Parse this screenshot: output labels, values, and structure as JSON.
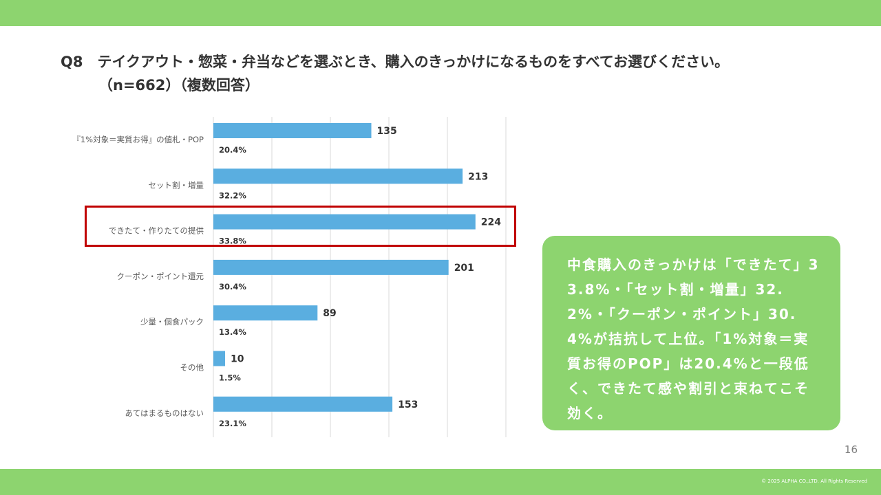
{
  "colors": {
    "band": "#8dd46f",
    "bar": "#5aaee0",
    "highlight": "#c00000",
    "summary_bg": "#8dd46f",
    "grid": "#d9d9d9"
  },
  "title": {
    "line1": "Q8　テイクアウト・惣菜・弁当などを選ぶとき、購入のきっかけになるものをすべてお選びください。",
    "line2": "（n=662）（複数回答）"
  },
  "chart_data": {
    "type": "bar",
    "orientation": "horizontal",
    "categories": [
      "『1%対象＝実質お得』の値札・POP",
      "セット割・増量",
      "できたて・作りたての提供",
      "クーポン・ポイント還元",
      "少量・個食パック",
      "その他",
      "あてはまるものはない"
    ],
    "values": [
      135,
      213,
      224,
      201,
      89,
      10,
      153
    ],
    "percent_labels": [
      "20.4%",
      "32.2%",
      "33.8%",
      "30.4%",
      "13.4%",
      "1.5%",
      "23.1%"
    ],
    "xlim": [
      0,
      250
    ],
    "grid": true,
    "highlighted_category_index": 2
  },
  "summary": {
    "text": "中食購入のきっかけは「できたて」33.8%・「セット割・増量」32.2%・「クーポン・ポイント」30.4%が拮抗して上位。「1%対象＝実質お得のPOP」は20.4%と一段低く、できたて感や割引と束ねてこそ効く。"
  },
  "footer": {
    "page_number": "16",
    "copyright": "© 2025 ALPHA CO.,LTD. All Rights Reserved"
  }
}
